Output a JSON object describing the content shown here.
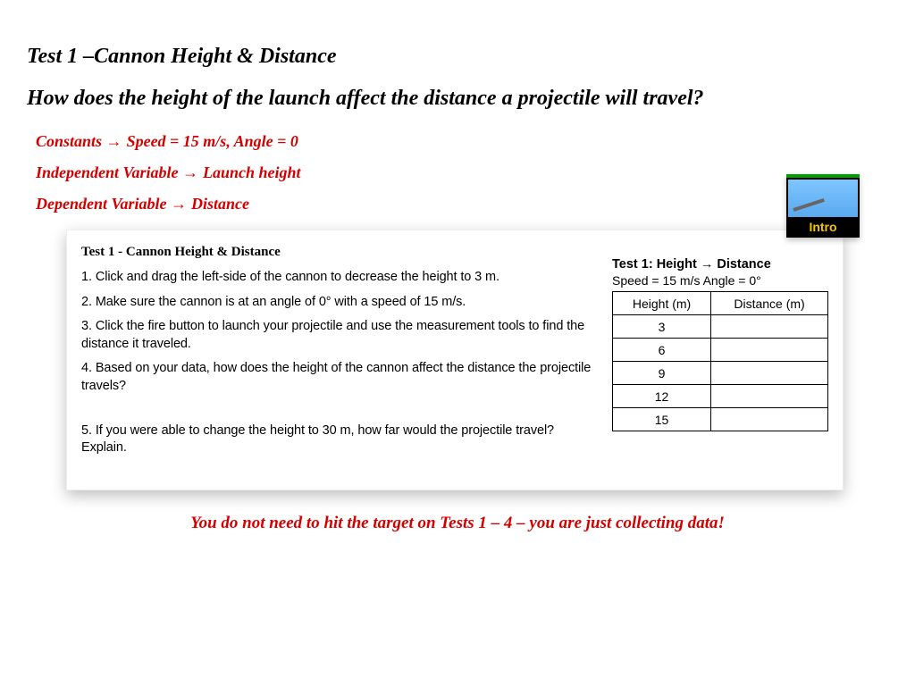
{
  "title": "Test 1 –Cannon Height & Distance",
  "question": "How does the height of the launch affect the distance a projectile will travel?",
  "vars": {
    "constants_label": "Constants",
    "constants_value": "Speed = 15 m/s, Angle = 0",
    "independent_label": "Independent Variable",
    "independent_value": "Launch height",
    "dependent_label": "Dependent Variable",
    "dependent_value": "Distance"
  },
  "intro_thumb": {
    "label": "Intro",
    "border_top_color": "#00a000",
    "label_color": "#f5c400",
    "sky_color": "#6cb8f5"
  },
  "panel": {
    "heading": "Test 1 - Cannon Height & Distance",
    "steps": [
      "1.  Click and drag the left-side of the cannon to decrease the height to 3 m.",
      "2.  Make sure the cannon is at an angle of 0° with a speed of 15 m/s.",
      "3. Click the fire button to launch your projectile and use the measurement tools to find the distance it traveled.",
      "4.  Based on your data, how does the height of the cannon affect the distance the projectile travels?",
      "5.  If you were able to change the height to 30 m, how far would the projectile travel?  Explain."
    ]
  },
  "table": {
    "title": "Test 1: Height → Distance",
    "subtitle": "Speed = 15 m/s   Angle = 0°",
    "columns": [
      "Height (m)",
      "Distance (m)"
    ],
    "rows": [
      [
        "3",
        ""
      ],
      [
        "6",
        ""
      ],
      [
        "9",
        ""
      ],
      [
        "12",
        ""
      ],
      [
        "15",
        ""
      ]
    ]
  },
  "footer": "You do not need to hit the target on Tests 1 – 4 – you are just collecting data!",
  "colors": {
    "accent_red": "#d40000",
    "text_black": "#000000",
    "background": "#ffffff"
  },
  "fonts": {
    "heading_family": "Georgia, serif",
    "body_family": "Arial, sans-serif",
    "heading_size_pt": 18,
    "var_size_pt": 14,
    "panel_text_pt": 11,
    "footer_pt": 14
  }
}
